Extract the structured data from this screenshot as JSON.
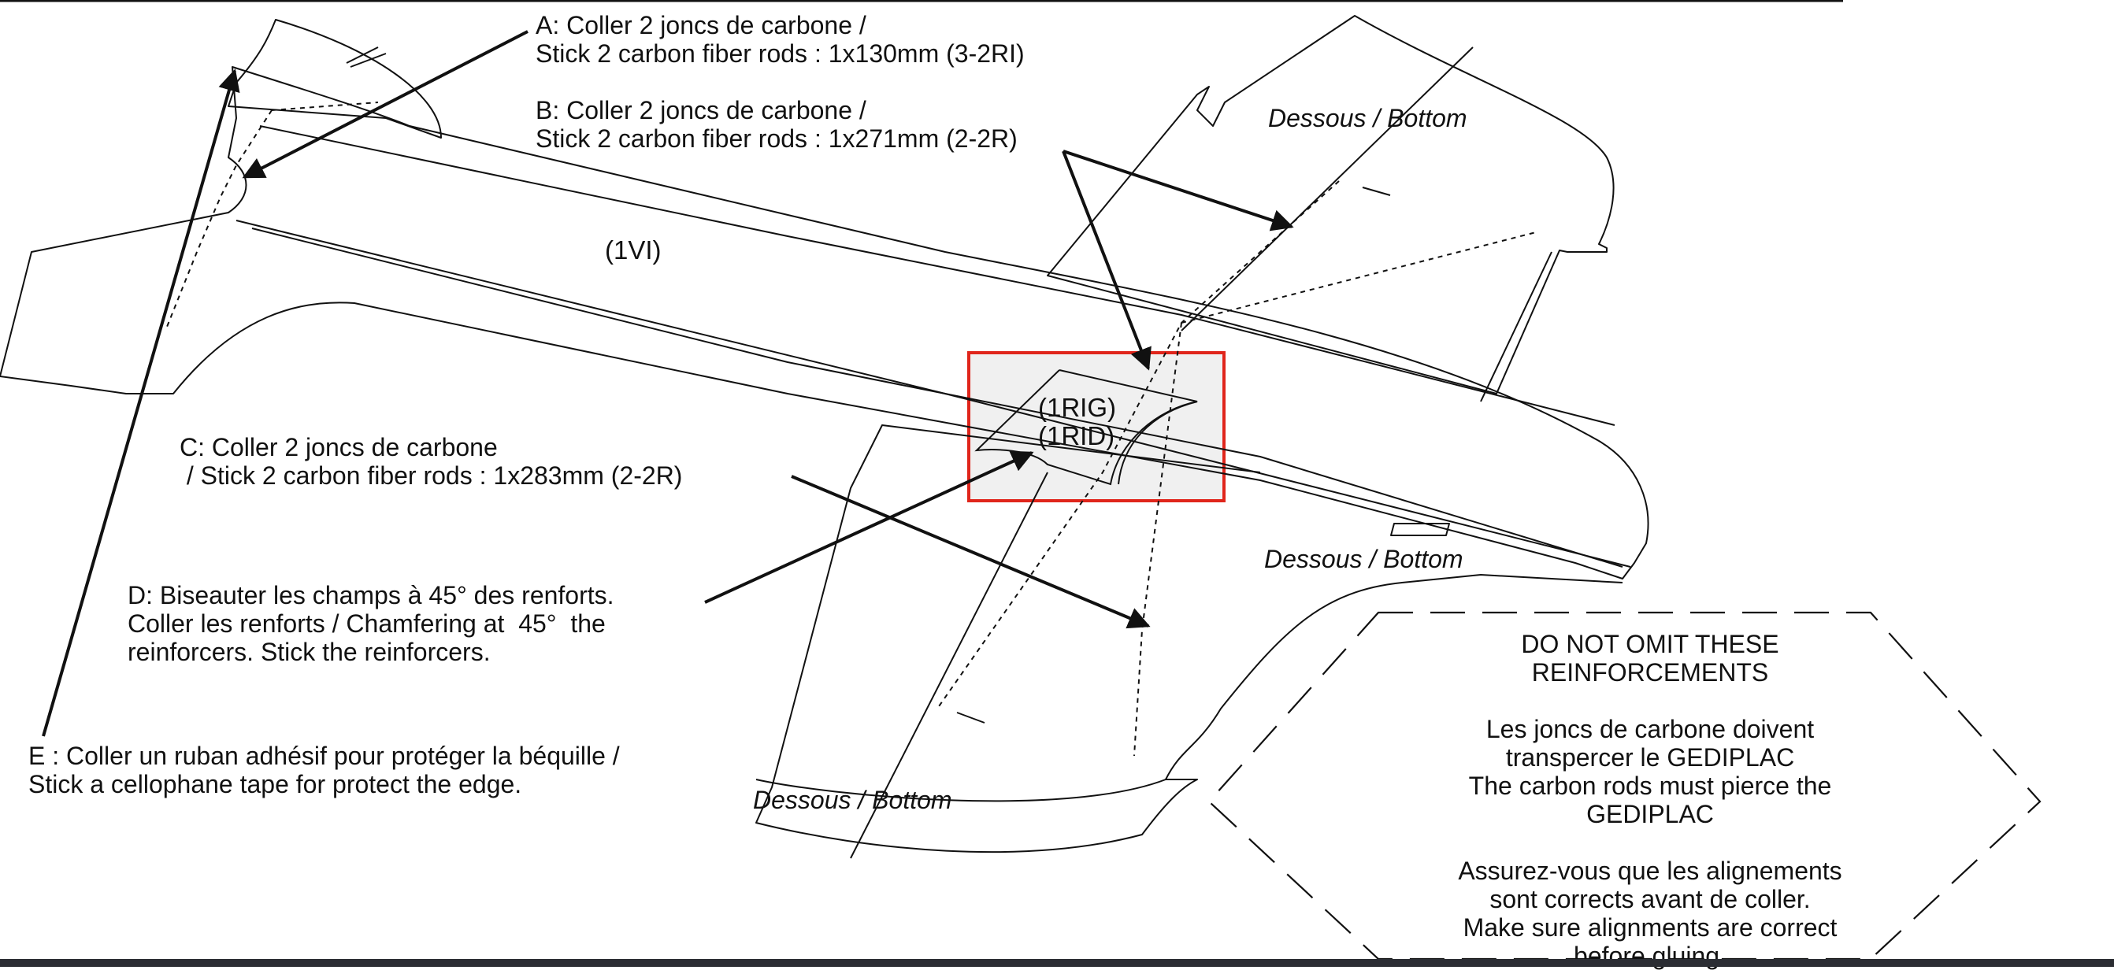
{
  "annotations": {
    "a_line1": "A: Coller 2 joncs de carbone /",
    "a_line2": "Stick 2 carbon fiber rods : 1x130mm (3-2RI)",
    "b_line1": "B: Coller 2 joncs de carbone /",
    "b_line2": "Stick 2 carbon fiber rods : 1x271mm (2-2R)",
    "c_line1": "C: Coller 2 joncs de carbone",
    "c_line2": " / Stick 2 carbon fiber rods : 1x283mm (2-2R)",
    "d_line1": "D: Biseauter les champs à 45° des renforts.",
    "d_line2": "Coller les renforts / Chamfering at  45°  the",
    "d_line3": "reinforcers. Stick the reinforcers.",
    "e_line1": "E : Coller un ruban adhésif pour protéger la béquille /",
    "e_line2": "Stick a cellophane tape for protect the edge."
  },
  "part_labels": {
    "fuselage": "(1VI)",
    "reinforcer_left": "(1RIG)",
    "reinforcer_right": "(1RID)"
  },
  "side_labels": {
    "top_right": "Dessous / Bottom",
    "middle_right": "Dessous / Bottom",
    "bottom_center": "Dessous / Bottom"
  },
  "notice": {
    "line1": "DO NOT OMIT THESE",
    "line2": "REINFORCEMENTS",
    "line3": "Les joncs de carbone doivent",
    "line4": "transpercer le GEDIPLAC",
    "line5": "The carbon rods must pierce the",
    "line6": "GEDIPLAC",
    "line7": "Assurez-vous que les alignements",
    "line8": "sont corrects avant de coller.",
    "line9": "Make sure alignments are correct",
    "line10": "before gluing."
  },
  "colors": {
    "line": "#111111",
    "highlight_border": "#e0251b",
    "highlight_fill": "#f0f0f0",
    "bottom_strip": "#2b2d33"
  }
}
